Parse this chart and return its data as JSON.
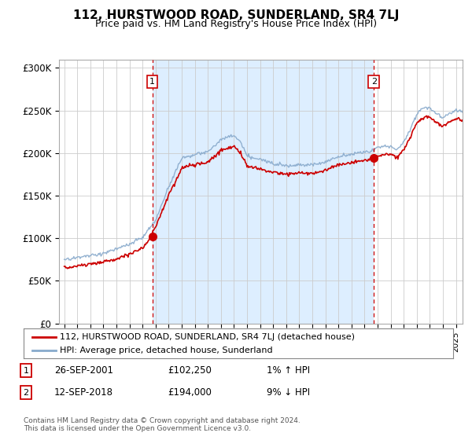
{
  "title": "112, HURSTWOOD ROAD, SUNDERLAND, SR4 7LJ",
  "subtitle": "Price paid vs. HM Land Registry's House Price Index (HPI)",
  "ylabel_ticks": [
    "£0",
    "£50K",
    "£100K",
    "£150K",
    "£200K",
    "£250K",
    "£300K"
  ],
  "ytick_vals": [
    0,
    50000,
    100000,
    150000,
    200000,
    250000,
    300000
  ],
  "ylim": [
    0,
    310000
  ],
  "xlim_start": 1994.6,
  "xlim_end": 2025.5,
  "sale1_year": 2001.74,
  "sale1_price": 102250,
  "sale2_year": 2018.71,
  "sale2_price": 194000,
  "vline_color": "#cc0000",
  "line_color_red": "#cc0000",
  "line_color_blue": "#88aacc",
  "shade_color": "#ddeeff",
  "marker_color": "#cc0000",
  "legend_entries": [
    "112, HURSTWOOD ROAD, SUNDERLAND, SR4 7LJ (detached house)",
    "HPI: Average price, detached house, Sunderland"
  ],
  "table_rows": [
    {
      "num": "1",
      "date": "26-SEP-2001",
      "price": "£102,250",
      "change": "1% ↑ HPI"
    },
    {
      "num": "2",
      "date": "12-SEP-2018",
      "price": "£194,000",
      "change": "9% ↓ HPI"
    }
  ],
  "footer": "Contains HM Land Registry data © Crown copyright and database right 2024.\nThis data is licensed under the Open Government Licence v3.0.",
  "background_color": "#ffffff",
  "grid_color": "#cccccc"
}
